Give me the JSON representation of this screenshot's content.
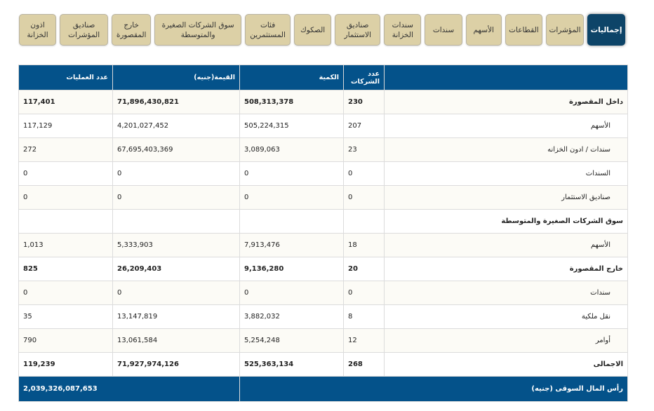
{
  "tabs": [
    {
      "label": "إجماليات",
      "active": true
    },
    {
      "label": "المؤشرات"
    },
    {
      "label": "القطاعات"
    },
    {
      "label": "الأسهم"
    },
    {
      "label": "سندات"
    },
    {
      "label": "سندات الخزانة"
    },
    {
      "label": "صناديق الاستثمار"
    },
    {
      "label": "الصكوك"
    },
    {
      "label": "فئات المستثمرين"
    },
    {
      "label": "سوق الشركات الصغيرة والمتوسطة"
    },
    {
      "label": "خارج المقصورة"
    },
    {
      "label": "صناديق المؤشرات"
    },
    {
      "label": "اذون الخزانة"
    }
  ],
  "table": {
    "headers": {
      "label": "",
      "count": "عدد الشركات",
      "quantity": "الكمية",
      "value": "القيمة(جنيه)",
      "ops": "عدد العمليات"
    },
    "rows": [
      {
        "label": "داخل المقصورة",
        "count": "230",
        "quantity": "508,313,378",
        "value": "71,896,430,821",
        "ops": "117,401",
        "bold": true
      },
      {
        "label": "الأسهم",
        "count": "207",
        "quantity": "505,224,315",
        "value": "4,201,027,452",
        "ops": "117,129",
        "sub": true
      },
      {
        "label": "سندات / ادون الخزانه",
        "count": "23",
        "quantity": "3,089,063",
        "value": "67,695,403,369",
        "ops": "272",
        "sub": true
      },
      {
        "label": "السندات",
        "count": "0",
        "quantity": "0",
        "value": "0",
        "ops": "0",
        "sub": true
      },
      {
        "label": "صناديق الاستثمار",
        "count": "0",
        "quantity": "0",
        "value": "0",
        "ops": "0",
        "sub": true
      },
      {
        "label": "سوق الشركات الصغيرة والمتوسطة",
        "count": "",
        "quantity": "",
        "value": "",
        "ops": "",
        "bold": true
      },
      {
        "label": "الأسهم",
        "count": "18",
        "quantity": "7,913,476",
        "value": "5,333,903",
        "ops": "1,013",
        "sub": true
      },
      {
        "label": "خارج المقصورة",
        "count": "20",
        "quantity": "9,136,280",
        "value": "26,209,403",
        "ops": "825",
        "bold": true
      },
      {
        "label": "سندات",
        "count": "0",
        "quantity": "0",
        "value": "0",
        "ops": "0",
        "sub": true
      },
      {
        "label": "نقل ملكية",
        "count": "8",
        "quantity": "3,882,032",
        "value": "13,147,819",
        "ops": "35",
        "sub": true
      },
      {
        "label": "أوامر",
        "count": "12",
        "quantity": "5,254,248",
        "value": "13,061,584",
        "ops": "790",
        "sub": true
      },
      {
        "label": "الاجمالى",
        "count": "268",
        "quantity": "525,363,134",
        "value": "71,927,974,126",
        "ops": "119,239",
        "bold": true
      }
    ],
    "footer": {
      "label": "رأس المال السوقى (جنيه)",
      "value": "2,039,326,087,653"
    }
  }
}
